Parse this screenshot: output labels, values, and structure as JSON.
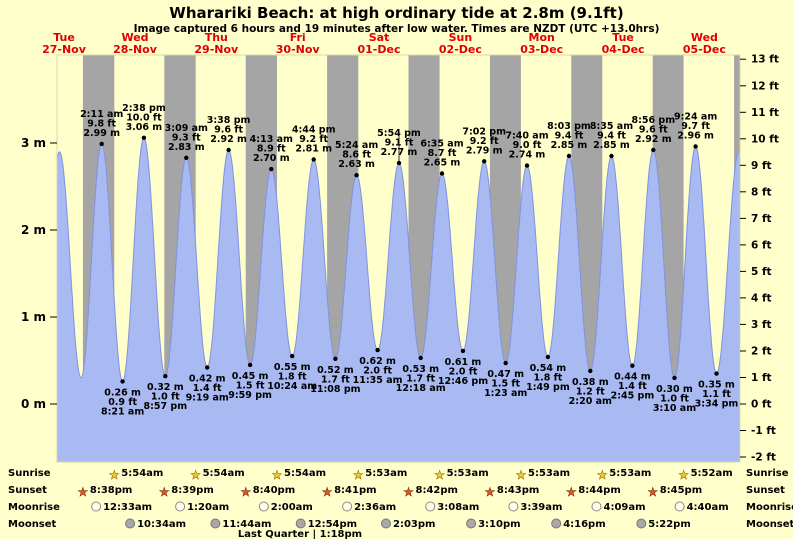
{
  "title": "Wharariki Beach: at high  ordinary tide at 2.8m (9.1ft)",
  "subtitle": "Image captured 6 hours and 19 minutes after low water. Times are NZDT (UTC +13.0hrs)",
  "colors": {
    "background": "#ffffcc",
    "night_band": "#a5a5a5",
    "tide_fill": "#a9b9f2",
    "tide_stroke": "#7f93e0",
    "day_label": "#e00000",
    "text": "#000000",
    "sunrise_star": "#f5c832",
    "sunset_star": "#e05a20",
    "moonrise_icon": "#ffffe8",
    "moonset_icon": "#a8a8a8"
  },
  "chart_data": {
    "type": "area",
    "title": "Wharariki Beach: at high  ordinary tide at 2.8m (9.1ft)",
    "x_unit": "hours from Tue 27-Nov 00:00 NZDT",
    "hours_domain": [
      13,
      214.5
    ],
    "y_left": {
      "unit": "m",
      "ticks": [
        3,
        2,
        1,
        0
      ]
    },
    "y_right": {
      "unit": "ft",
      "ticks": [
        13,
        12,
        11,
        10,
        9,
        8,
        7,
        6,
        5,
        4,
        3,
        2,
        1,
        0,
        -1,
        -2
      ]
    },
    "x_days": [
      {
        "weekday": "Tue",
        "date": "27-Nov",
        "noon_hour": 12
      },
      {
        "weekday": "Wed",
        "date": "28-Nov",
        "noon_hour": 36
      },
      {
        "weekday": "Thu",
        "date": "29-Nov",
        "noon_hour": 60
      },
      {
        "weekday": "Fri",
        "date": "30-Nov",
        "noon_hour": 84
      },
      {
        "weekday": "Sat",
        "date": "01-Dec",
        "noon_hour": 108
      },
      {
        "weekday": "Sun",
        "date": "02-Dec",
        "noon_hour": 132
      },
      {
        "weekday": "Mon",
        "date": "03-Dec",
        "noon_hour": 156
      },
      {
        "weekday": "Tue",
        "date": "04-Dec",
        "noon_hour": 180
      },
      {
        "weekday": "Wed",
        "date": "05-Dec",
        "noon_hour": 204
      }
    ],
    "tide_events": [
      {
        "kind": "high",
        "time": "2:11 am",
        "hour": 26.18,
        "height_m": "2.99",
        "height_ft": "9.8"
      },
      {
        "kind": "low",
        "time": "8:21 am",
        "hour": 32.35,
        "height_m": "0.26",
        "height_ft": "0.9"
      },
      {
        "kind": "high",
        "time": "2:38 pm",
        "hour": 38.63,
        "height_m": "3.06",
        "height_ft": "10.0"
      },
      {
        "kind": "low",
        "time": "8:57 pm",
        "hour": 44.95,
        "height_m": "0.32",
        "height_ft": "1.0"
      },
      {
        "kind": "high",
        "time": "3:09 am",
        "hour": 51.15,
        "height_m": "2.83",
        "height_ft": "9.3"
      },
      {
        "kind": "low",
        "time": "9:19 am",
        "hour": 57.32,
        "height_m": "0.42",
        "height_ft": "1.4"
      },
      {
        "kind": "high",
        "time": "3:38 pm",
        "hour": 63.63,
        "height_m": "2.92",
        "height_ft": "9.6"
      },
      {
        "kind": "low",
        "time": "9:59 pm",
        "hour": 69.98,
        "height_m": "0.45",
        "height_ft": "1.5"
      },
      {
        "kind": "high",
        "time": "4:13 am",
        "hour": 76.22,
        "height_m": "2.70",
        "height_ft": "8.9"
      },
      {
        "kind": "low",
        "time": "10:24 am",
        "hour": 82.4,
        "height_m": "0.55",
        "height_ft": "1.8"
      },
      {
        "kind": "high",
        "time": "4:44 pm",
        "hour": 88.73,
        "height_m": "2.81",
        "height_ft": "9.2"
      },
      {
        "kind": "low",
        "time": "11:08 pm",
        "hour": 95.13,
        "height_m": "0.52",
        "height_ft": "1.7"
      },
      {
        "kind": "high",
        "time": "5:24 am",
        "hour": 101.4,
        "height_m": "2.63",
        "height_ft": "8.6"
      },
      {
        "kind": "low",
        "time": "11:35 am",
        "hour": 107.58,
        "height_m": "0.62",
        "height_ft": "2.0"
      },
      {
        "kind": "high",
        "time": "5:54 pm",
        "hour": 113.9,
        "height_m": "2.77",
        "height_ft": "9.1"
      },
      {
        "kind": "low",
        "time": "12:18 am",
        "hour": 120.3,
        "height_m": "0.53",
        "height_ft": "1.7"
      },
      {
        "kind": "high",
        "time": "6:35 am",
        "hour": 126.58,
        "height_m": "2.65",
        "height_ft": "8.7"
      },
      {
        "kind": "low",
        "time": "12:46 pm",
        "hour": 132.77,
        "height_m": "0.61",
        "height_ft": "2.0"
      },
      {
        "kind": "high",
        "time": "7:02 pm",
        "hour": 139.03,
        "height_m": "2.79",
        "height_ft": "9.2"
      },
      {
        "kind": "low",
        "time": "1:23 am",
        "hour": 145.38,
        "height_m": "0.47",
        "height_ft": "1.5"
      },
      {
        "kind": "high",
        "time": "7:40 am",
        "hour": 151.67,
        "height_m": "2.74",
        "height_ft": "9.0"
      },
      {
        "kind": "low",
        "time": "1:49 pm",
        "hour": 157.82,
        "height_m": "0.54",
        "height_ft": "1.8"
      },
      {
        "kind": "high",
        "time": "8:03 pm",
        "hour": 164.05,
        "height_m": "2.85",
        "height_ft": "9.4"
      },
      {
        "kind": "low",
        "time": "2:20 am",
        "hour": 170.33,
        "height_m": "0.38",
        "height_ft": "1.2"
      },
      {
        "kind": "high",
        "time": "8:35 am",
        "hour": 176.58,
        "height_m": "2.85",
        "height_ft": "9.4"
      },
      {
        "kind": "low",
        "time": "2:45 pm",
        "hour": 182.75,
        "height_m": "0.44",
        "height_ft": "1.4"
      },
      {
        "kind": "high",
        "time": "8:56 pm",
        "hour": 188.93,
        "height_m": "2.92",
        "height_ft": "9.6"
      },
      {
        "kind": "low",
        "time": "3:10 am",
        "hour": 195.17,
        "height_m": "0.30",
        "height_ft": "1.0"
      },
      {
        "kind": "high",
        "time": "9:24 am",
        "hour": 201.4,
        "height_m": "2.96",
        "height_ft": "9.7"
      },
      {
        "kind": "low",
        "time": "3:34 pm",
        "hour": 207.57,
        "height_m": "0.35",
        "height_ft": "1.1"
      }
    ],
    "edge_shape_extremes": [
      {
        "hour": 7.6,
        "m": 0.3
      },
      {
        "hour": 13.75,
        "m": 2.9
      },
      {
        "hour": 20.1,
        "m": 0.3
      },
      {
        "hour": 214.2,
        "m": 2.9
      },
      {
        "hour": 220.2,
        "m": 0.3
      }
    ],
    "night_final_start_hour": 212.77,
    "capture_marker_hour": 113.9,
    "sun": {
      "sunrise_label": "Sunrise",
      "sunset_label": "Sunset",
      "sunrise": [
        {
          "time": "5:54am",
          "hour": 29.9
        },
        {
          "time": "5:54am",
          "hour": 53.9
        },
        {
          "time": "5:54am",
          "hour": 77.9
        },
        {
          "time": "5:53am",
          "hour": 101.88
        },
        {
          "time": "5:53am",
          "hour": 125.88
        },
        {
          "time": "5:53am",
          "hour": 149.88
        },
        {
          "time": "5:53am",
          "hour": 173.88
        },
        {
          "time": "5:52am",
          "hour": 197.87
        }
      ],
      "sunset": [
        {
          "time": "8:38pm",
          "hour": 20.63
        },
        {
          "time": "8:39pm",
          "hour": 44.65
        },
        {
          "time": "8:40pm",
          "hour": 68.67
        },
        {
          "time": "8:41pm",
          "hour": 92.68
        },
        {
          "time": "8:42pm",
          "hour": 116.7
        },
        {
          "time": "8:43pm",
          "hour": 140.72
        },
        {
          "time": "8:44pm",
          "hour": 164.73
        },
        {
          "time": "8:45pm",
          "hour": 188.75
        }
      ]
    },
    "moon": {
      "moonrise_label": "Moonrise",
      "moonset_label": "Moonset",
      "moonrise": [
        {
          "time": "12:33am",
          "hour": 24.55
        },
        {
          "time": "1:20am",
          "hour": 49.33
        },
        {
          "time": "2:00am",
          "hour": 74.0
        },
        {
          "time": "2:36am",
          "hour": 98.6
        },
        {
          "time": "3:08am",
          "hour": 123.13
        },
        {
          "time": "3:39am",
          "hour": 147.65
        },
        {
          "time": "4:09am",
          "hour": 172.15
        },
        {
          "time": "4:40am",
          "hour": 196.67
        }
      ],
      "moonset": [
        {
          "time": "10:34am",
          "hour": 34.57
        },
        {
          "time": "11:44am",
          "hour": 59.73
        },
        {
          "time": "12:54pm",
          "hour": 84.9
        },
        {
          "time": "2:03pm",
          "hour": 110.05
        },
        {
          "time": "3:10pm",
          "hour": 135.17
        },
        {
          "time": "4:16pm",
          "hour": 160.27
        },
        {
          "time": "5:22pm",
          "hour": 185.37
        }
      ],
      "phase_label": "Last Quarter | 1:18pm"
    }
  }
}
